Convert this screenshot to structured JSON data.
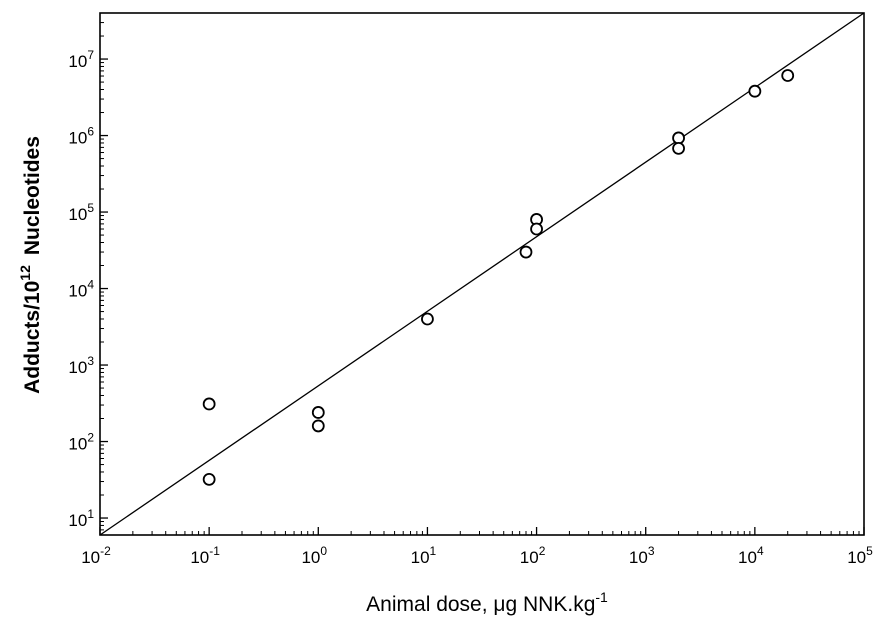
{
  "chart_data": {
    "type": "scatter",
    "xlabel": "Animal dose, μg NNK.kg",
    "xlabel_superscript": "-1",
    "ylabel_prefix": "Adducts/10",
    "ylabel_superscript": "12",
    "ylabel_suffix": "Nucleotides",
    "x_scale": "log",
    "y_scale": "log",
    "xlim": [
      0.01,
      100000
    ],
    "ylim": [
      6,
      40000000
    ],
    "grid": false,
    "legend": "none",
    "x_ticks": [
      {
        "value": 0.01,
        "base": "10",
        "exp": "-2"
      },
      {
        "value": 0.1,
        "base": "10",
        "exp": "-1"
      },
      {
        "value": 1,
        "base": "10",
        "exp": "0"
      },
      {
        "value": 10,
        "base": "10",
        "exp": "1"
      },
      {
        "value": 100,
        "base": "10",
        "exp": "2"
      },
      {
        "value": 1000,
        "base": "10",
        "exp": "3"
      },
      {
        "value": 10000,
        "base": "10",
        "exp": "4"
      },
      {
        "value": 100000,
        "base": "10",
        "exp": "5"
      }
    ],
    "y_ticks": [
      {
        "value": 10,
        "base": "10",
        "exp": "1"
      },
      {
        "value": 100,
        "base": "10",
        "exp": "2"
      },
      {
        "value": 1000,
        "base": "10",
        "exp": "3"
      },
      {
        "value": 10000,
        "base": "10",
        "exp": "4"
      },
      {
        "value": 100000,
        "base": "10",
        "exp": "5"
      },
      {
        "value": 1000000,
        "base": "10",
        "exp": "6"
      },
      {
        "value": 10000000,
        "base": "10",
        "exp": "7"
      }
    ],
    "points": [
      {
        "x": 0.1,
        "y": 310
      },
      {
        "x": 0.1,
        "y": 32
      },
      {
        "x": 1,
        "y": 240
      },
      {
        "x": 1,
        "y": 160
      },
      {
        "x": 10,
        "y": 4000
      },
      {
        "x": 80,
        "y": 30000
      },
      {
        "x": 100,
        "y": 80000
      },
      {
        "x": 100,
        "y": 60000
      },
      {
        "x": 2000,
        "y": 930000
      },
      {
        "x": 2000,
        "y": 680000
      },
      {
        "x": 10000,
        "y": 3800000
      },
      {
        "x": 20000,
        "y": 6100000
      }
    ],
    "fit_line": {
      "x": [
        0.01,
        100000
      ],
      "y": [
        6,
        40000000
      ]
    }
  }
}
